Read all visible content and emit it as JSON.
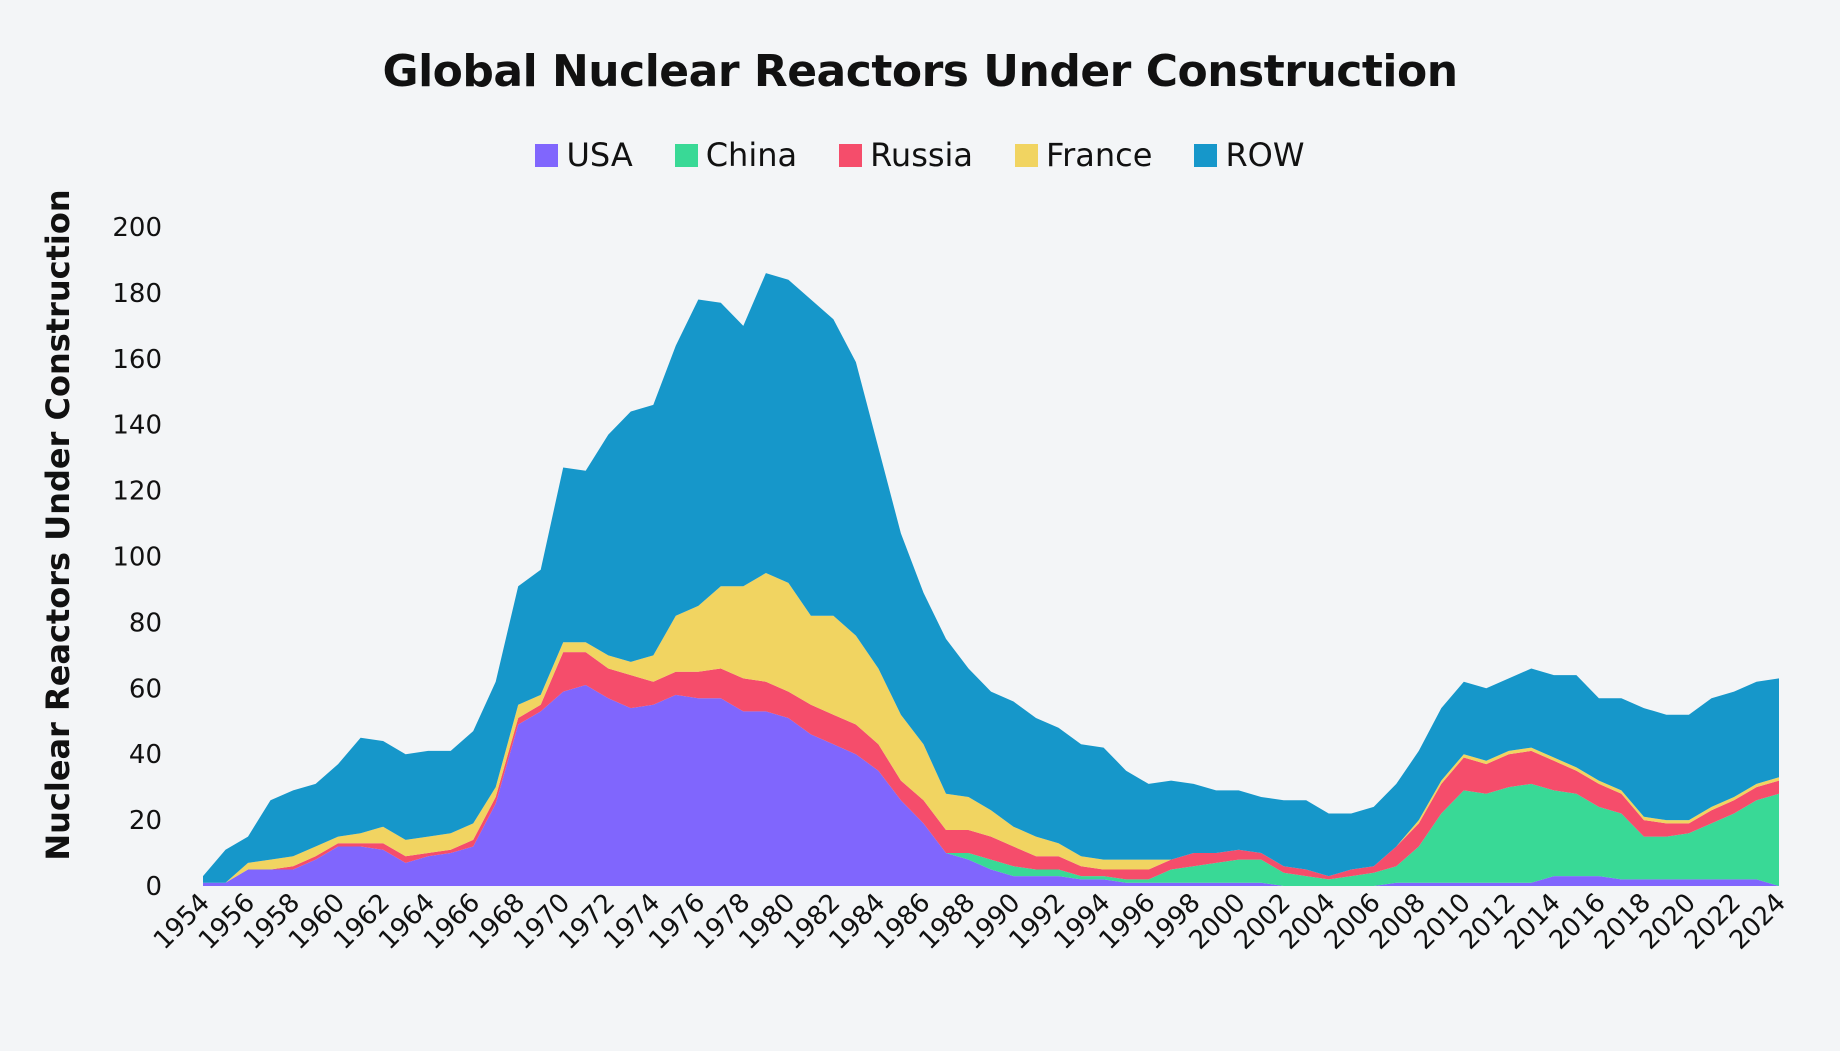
{
  "chart_data": {
    "type": "area",
    "stacked": true,
    "title": "Global Nuclear Reactors Under Construction",
    "ylabel": "Nuclear Reactors Under Construction",
    "xlabel": "",
    "ylim": [
      0,
      200
    ],
    "yticks": [
      "0",
      "20",
      "40",
      "60",
      "80",
      "100",
      "120",
      "140",
      "160",
      "180",
      "200"
    ],
    "x": [
      1954,
      1955,
      1956,
      1957,
      1958,
      1959,
      1960,
      1961,
      1962,
      1963,
      1964,
      1965,
      1966,
      1967,
      1968,
      1969,
      1970,
      1971,
      1972,
      1973,
      1974,
      1975,
      1976,
      1977,
      1978,
      1979,
      1980,
      1981,
      1982,
      1983,
      1984,
      1985,
      1986,
      1987,
      1988,
      1989,
      1990,
      1991,
      1992,
      1993,
      1994,
      1995,
      1996,
      1997,
      1998,
      1999,
      2000,
      2001,
      2002,
      2003,
      2004,
      2005,
      2006,
      2007,
      2008,
      2009,
      2010,
      2011,
      2012,
      2013,
      2014,
      2015,
      2016,
      2017,
      2018,
      2019,
      2020,
      2021,
      2022,
      2023,
      2024
    ],
    "xticks": [
      "1954",
      "1956",
      "1958",
      "1960",
      "1962",
      "1964",
      "1966",
      "1968",
      "1970",
      "1972",
      "1974",
      "1976",
      "1978",
      "1980",
      "1982",
      "1984",
      "1986",
      "1988",
      "1990",
      "1992",
      "1994",
      "1996",
      "1998",
      "2000",
      "2002",
      "2004",
      "2006",
      "2008",
      "2010",
      "2012",
      "2014",
      "2016",
      "2018",
      "2020",
      "2022",
      "2024"
    ],
    "legend_position": "top-center",
    "grid": false,
    "series": [
      {
        "name": "USA",
        "color": "#8066fd",
        "values": [
          1,
          1,
          5,
          5,
          5,
          8,
          12,
          12,
          11,
          7,
          9,
          10,
          12,
          25,
          49,
          53,
          59,
          61,
          57,
          54,
          55,
          58,
          57,
          57,
          53,
          53,
          51,
          46,
          43,
          40,
          35,
          26,
          19,
          10,
          8,
          5,
          3,
          3,
          3,
          2,
          2,
          1,
          1,
          1,
          1,
          1,
          1,
          1,
          0,
          0,
          0,
          0,
          0,
          1,
          1,
          1,
          1,
          1,
          1,
          1,
          3,
          3,
          3,
          2,
          2,
          2,
          2,
          2,
          2,
          2,
          0
        ]
      },
      {
        "name": "China",
        "color": "#39d996",
        "values": [
          0,
          0,
          0,
          0,
          0,
          0,
          0,
          0,
          0,
          0,
          0,
          0,
          0,
          0,
          0,
          0,
          0,
          0,
          0,
          0,
          0,
          0,
          0,
          0,
          0,
          0,
          0,
          0,
          0,
          0,
          0,
          0,
          0,
          0,
          2,
          3,
          3,
          2,
          2,
          1,
          1,
          1,
          1,
          4,
          5,
          6,
          7,
          7,
          4,
          3,
          2,
          3,
          4,
          5,
          11,
          21,
          28,
          27,
          29,
          30,
          26,
          25,
          21,
          20,
          13,
          13,
          14,
          17,
          20,
          24,
          28
        ]
      },
      {
        "name": "Russia",
        "color": "#f54d6b",
        "values": [
          0,
          0,
          0,
          0,
          1,
          1,
          1,
          1,
          2,
          2,
          1,
          1,
          2,
          2,
          2,
          2,
          12,
          10,
          9,
          10,
          7,
          7,
          8,
          9,
          10,
          9,
          8,
          9,
          9,
          9,
          8,
          6,
          7,
          7,
          7,
          7,
          6,
          4,
          4,
          3,
          2,
          3,
          3,
          3,
          4,
          3,
          3,
          2,
          2,
          2,
          1,
          2,
          2,
          6,
          7,
          9,
          10,
          9,
          10,
          10,
          9,
          7,
          7,
          6,
          5,
          4,
          3,
          4,
          4,
          4,
          4
        ]
      },
      {
        "name": "France",
        "color": "#f1d461",
        "values": [
          0,
          0,
          2,
          3,
          3,
          3,
          2,
          3,
          5,
          5,
          5,
          5,
          5,
          3,
          4,
          3,
          3,
          3,
          4,
          4,
          8,
          17,
          20,
          25,
          28,
          33,
          33,
          27,
          30,
          27,
          23,
          20,
          17,
          11,
          10,
          8,
          6,
          6,
          4,
          3,
          3,
          3,
          3,
          0,
          0,
          0,
          0,
          0,
          0,
          0,
          0,
          0,
          0,
          0,
          1,
          1,
          1,
          1,
          1,
          1,
          1,
          1,
          1,
          1,
          1,
          1,
          1,
          1,
          1,
          1,
          1
        ]
      },
      {
        "name": "ROW",
        "color": "#1697ca",
        "values": [
          2,
          10,
          8,
          18,
          20,
          19,
          22,
          29,
          26,
          26,
          26,
          25,
          28,
          32,
          36,
          38,
          53,
          52,
          67,
          76,
          76,
          82,
          93,
          86,
          79,
          91,
          92,
          96,
          90,
          83,
          67,
          55,
          46,
          47,
          39,
          36,
          38,
          36,
          35,
          34,
          34,
          27,
          23,
          24,
          21,
          19,
          18,
          17,
          20,
          21,
          19,
          17,
          18,
          19,
          21,
          22,
          22,
          22,
          22,
          24,
          25,
          28,
          25,
          28,
          33,
          32,
          32,
          33,
          32,
          31,
          30
        ]
      }
    ]
  }
}
